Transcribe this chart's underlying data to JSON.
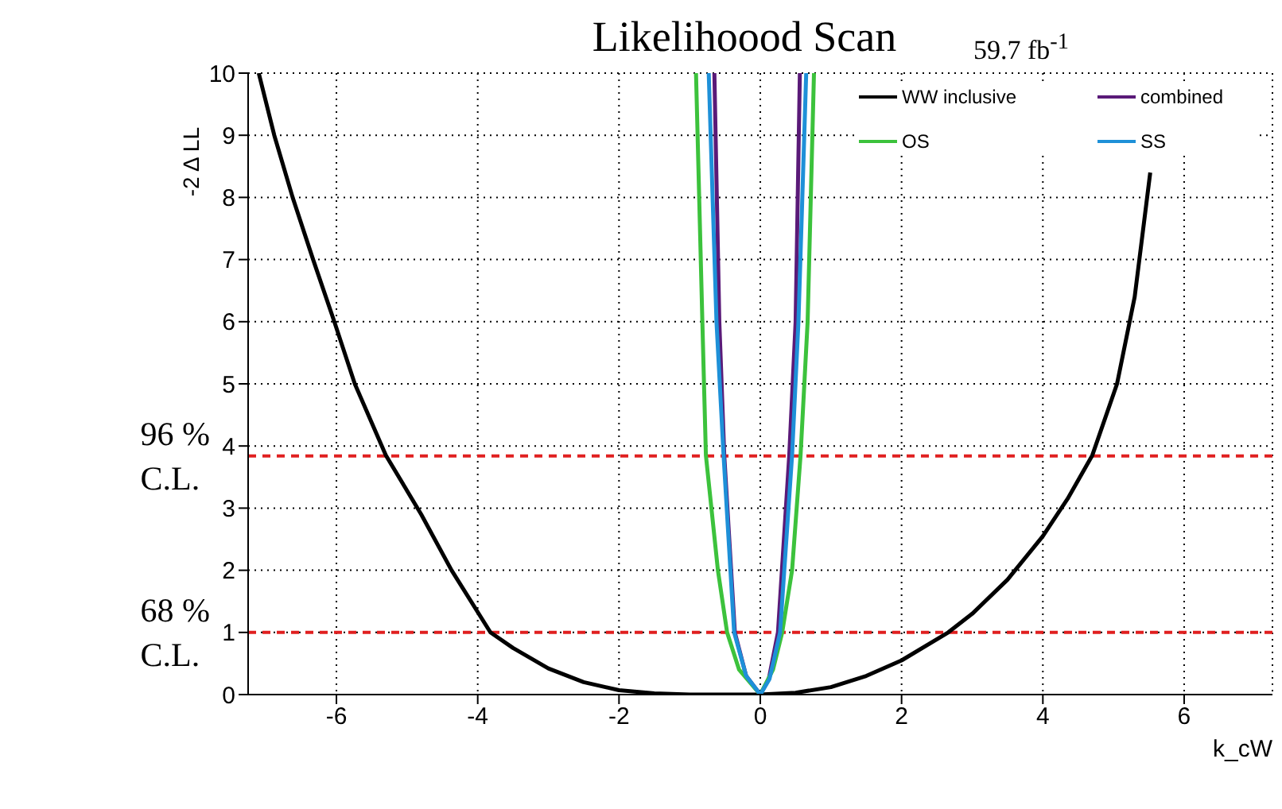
{
  "chart_data": {
    "type": "line",
    "title": "Likelihoood Scan",
    "xlabel": "k_cW",
    "ylabel": "-2 Δ LL",
    "xlim": [
      -7.25,
      7.25
    ],
    "xticks": [
      -6,
      -4,
      -2,
      0,
      2,
      4,
      6
    ],
    "ylim": [
      0,
      10
    ],
    "yticks": [
      0,
      1,
      2,
      3,
      4,
      5,
      6,
      7,
      8,
      9,
      10
    ],
    "grid": true,
    "legend": "top right",
    "line_style": "solid",
    "series": [
      {
        "name": "WW inclusive",
        "color": "#000000",
        "x": [
          -7.1,
          -6.88,
          -6.62,
          -6.33,
          -6.03,
          -5.74,
          -5.3,
          -4.8,
          -4.37,
          -3.82,
          -3.5,
          -3,
          -2.5,
          -2,
          -1.5,
          -1,
          -0.5,
          0,
          0.5,
          1,
          1.5,
          2,
          2.66,
          3,
          3.5,
          4,
          4.35,
          4.7,
          5.05,
          5.3,
          5.52
        ],
        "values": [
          10,
          9,
          8,
          7,
          6,
          5,
          3.85,
          2.9,
          2,
          1,
          0.75,
          0.42,
          0.2,
          0.07,
          0.02,
          0,
          0,
          0,
          0.03,
          0.12,
          0.3,
          0.55,
          1,
          1.3,
          1.85,
          2.55,
          3.15,
          3.85,
          5,
          6.4,
          8.4
        ]
      },
      {
        "name": "combined",
        "color": "#5a1a78",
        "x": [
          -0.65,
          -0.58,
          -0.51,
          -0.36,
          -0.2,
          0,
          0.12,
          0.25,
          0.41,
          0.5,
          0.56
        ],
        "values": [
          10,
          6,
          3.85,
          1,
          0.3,
          0,
          0.25,
          1,
          3.85,
          6,
          10
        ]
      },
      {
        "name": "OS",
        "color": "#3cc23c",
        "x": [
          -0.91,
          -0.82,
          -0.77,
          -0.6,
          -0.47,
          -0.3,
          0,
          0.18,
          0.31,
          0.45,
          0.57,
          0.67,
          0.76
        ],
        "values": [
          10,
          6,
          3.85,
          2,
          1,
          0.4,
          0,
          0.4,
          1,
          2,
          3.85,
          6,
          10
        ]
      },
      {
        "name": "SS",
        "color": "#1e90d8",
        "x": [
          -0.73,
          -0.62,
          -0.52,
          -0.37,
          -0.2,
          0,
          0.13,
          0.28,
          0.45,
          0.54,
          0.65
        ],
        "values": [
          10,
          6,
          3.85,
          1,
          0.3,
          0,
          0.25,
          1,
          3.85,
          6,
          10
        ]
      }
    ],
    "ref_lines": [
      {
        "axis": "y",
        "value": 3.84,
        "label": "96 %\nC.L.",
        "color": "#e02020",
        "line_style": "dashed"
      },
      {
        "axis": "y",
        "value": 1,
        "label": "68 %\nC.L.",
        "color": "#e02020",
        "line_style": "dashed"
      }
    ],
    "annotations": [
      "59.7 fb$^{-1}$"
    ]
  }
}
